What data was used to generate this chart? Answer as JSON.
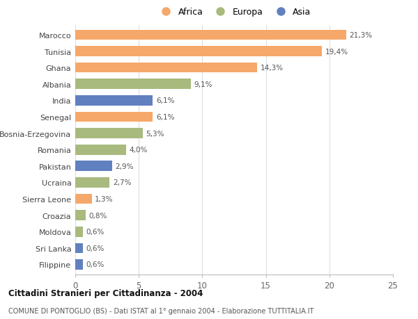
{
  "countries": [
    "Marocco",
    "Tunisia",
    "Ghana",
    "Albania",
    "India",
    "Senegal",
    "Bosnia-Erzegovina",
    "Romania",
    "Pakistan",
    "Ucraina",
    "Sierra Leone",
    "Croazia",
    "Moldova",
    "Sri Lanka",
    "Filippine"
  ],
  "values": [
    21.3,
    19.4,
    14.3,
    9.1,
    6.1,
    6.1,
    5.3,
    4.0,
    2.9,
    2.7,
    1.3,
    0.8,
    0.6,
    0.6,
    0.6
  ],
  "labels": [
    "21,3%",
    "19,4%",
    "14,3%",
    "9,1%",
    "6,1%",
    "6,1%",
    "5,3%",
    "4,0%",
    "2,9%",
    "2,7%",
    "1,3%",
    "0,8%",
    "0,6%",
    "0,6%",
    "0,6%"
  ],
  "continents": [
    "Africa",
    "Africa",
    "Africa",
    "Europa",
    "Asia",
    "Africa",
    "Europa",
    "Europa",
    "Asia",
    "Europa",
    "Africa",
    "Europa",
    "Europa",
    "Asia",
    "Asia"
  ],
  "colors": {
    "Africa": "#F5A86A",
    "Europa": "#A8BA7E",
    "Asia": "#6080C0"
  },
  "xlim": [
    0,
    25
  ],
  "xticks": [
    0,
    5,
    10,
    15,
    20,
    25
  ],
  "title": "Cittadini Stranieri per Cittadinanza - 2004",
  "subtitle": "COMUNE DI PONTOGLIO (BS) - Dati ISTAT al 1° gennaio 2004 - Elaborazione TUTTITALIA.IT",
  "background_color": "#ffffff"
}
